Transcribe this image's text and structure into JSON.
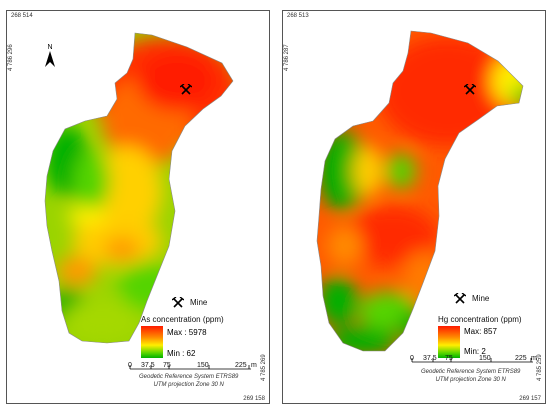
{
  "maps": [
    {
      "coord_top": "268 514",
      "coord_left": "4 786 296",
      "coord_bottom": "269 158",
      "coord_right": "4 785 269",
      "north_label": "N",
      "mine_label": "Mine",
      "legend_title": "As concentration (ppm)",
      "max_label": "Max : 5978",
      "min_label": "Min : 62",
      "scale_ticks": [
        "0",
        "37.5",
        "75",
        "150",
        "225"
      ],
      "scale_unit": "m",
      "credit_line1": "Geodetic Reference System ETRS89",
      "credit_line2": "UTM projection Zone 30 N"
    },
    {
      "coord_top": "268 513",
      "coord_left": "4 786 287",
      "coord_bottom": "269 157",
      "coord_right": "4 785 259",
      "mine_label": "Mine",
      "legend_title": "Hg concentration (ppm)",
      "max_label": "Max: 857",
      "min_label": "Min: 2",
      "scale_ticks": [
        "0",
        "37.5",
        "75",
        "150",
        "225"
      ],
      "scale_unit": "m",
      "credit_line1": "Geodetic Reference System ETRS89",
      "credit_line2": "UTM projection Zone 30 N"
    }
  ],
  "colors": {
    "high": "#ff1a00",
    "mid_high": "#ff8a00",
    "mid": "#ffee00",
    "mid_low": "#55d400",
    "low": "#00b000"
  }
}
